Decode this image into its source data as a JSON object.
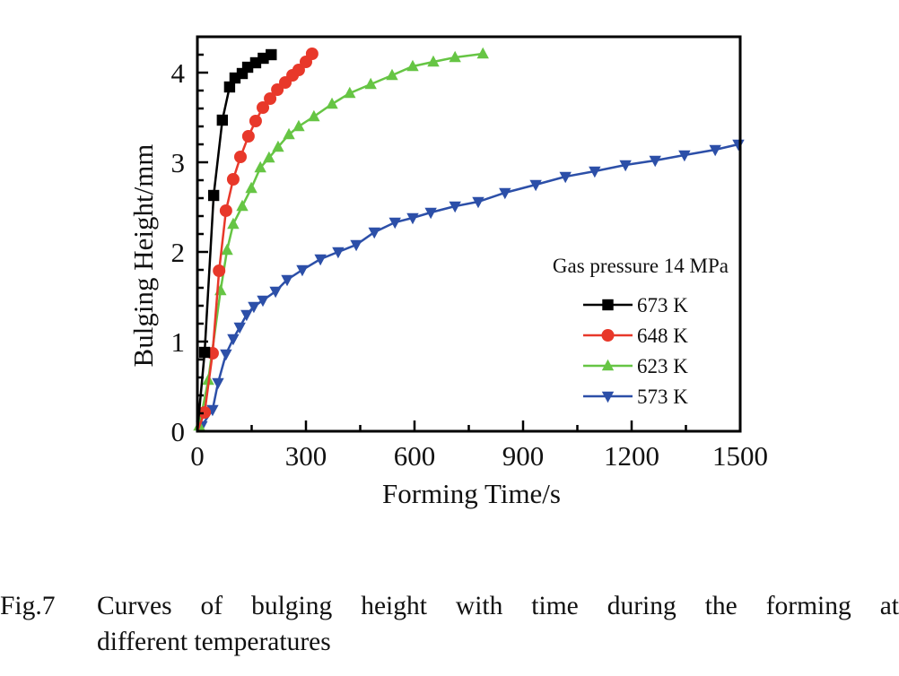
{
  "chart_data": {
    "type": "line",
    "title": "",
    "xlabel": "Forming Time/s",
    "ylabel": "Bulging Height/mm",
    "xlim": [
      0,
      1500
    ],
    "ylim": [
      0,
      4.4
    ],
    "xticks": [
      0,
      300,
      600,
      900,
      1200,
      1500
    ],
    "xtick_labels": [
      "0",
      "300",
      "600",
      "900",
      "1200",
      "1500"
    ],
    "yticks": [
      0,
      1,
      2,
      3,
      4
    ],
    "ytick_labels": [
      "0",
      "1",
      "2",
      "3",
      "4"
    ],
    "x_minor_step": 150,
    "y_minor_step": 0.2,
    "grid": false,
    "legend_title": "Gas pressure 14 MPa",
    "legend_position": "center-right",
    "series": [
      {
        "name": "673 K",
        "color": "#000000",
        "marker": "square",
        "x": [
          0,
          20,
          45,
          69,
          89,
          104,
          124,
          139,
          161,
          182,
          204
        ],
        "y": [
          0,
          0.88,
          2.63,
          3.47,
          3.84,
          3.94,
          3.99,
          4.06,
          4.11,
          4.16,
          4.2
        ]
      },
      {
        "name": "648 K",
        "color": "#e8382a",
        "marker": "circle",
        "x": [
          0,
          20,
          42,
          60,
          79,
          99,
          119,
          141,
          161,
          181,
          201,
          221,
          243,
          263,
          280,
          300,
          317
        ],
        "y": [
          0,
          0.21,
          0.87,
          1.79,
          2.46,
          2.81,
          3.06,
          3.29,
          3.46,
          3.61,
          3.71,
          3.81,
          3.89,
          3.97,
          4.03,
          4.12,
          4.21
        ]
      },
      {
        "name": "623 K",
        "color": "#66c544",
        "marker": "triangle-up",
        "x": [
          0,
          5,
          30,
          64,
          82,
          99,
          124,
          149,
          174,
          198,
          223,
          253,
          280,
          322,
          372,
          421,
          479,
          538,
          595,
          652,
          712,
          789
        ],
        "y": [
          0,
          0.06,
          0.57,
          1.57,
          2.02,
          2.31,
          2.51,
          2.71,
          2.94,
          3.05,
          3.17,
          3.31,
          3.4,
          3.51,
          3.65,
          3.77,
          3.87,
          3.97,
          4.07,
          4.12,
          4.17,
          4.21
        ]
      },
      {
        "name": "573 K",
        "color": "#2c4fa8",
        "marker": "triangle-down",
        "x": [
          0,
          12,
          42,
          57,
          79,
          99,
          117,
          136,
          156,
          181,
          216,
          248,
          290,
          340,
          389,
          439,
          489,
          546,
          595,
          645,
          712,
          776,
          850,
          935,
          1017,
          1098,
          1183,
          1265,
          1346,
          1431,
          1495
        ],
        "y": [
          0,
          0.06,
          0.24,
          0.54,
          0.86,
          1.03,
          1.16,
          1.3,
          1.39,
          1.46,
          1.56,
          1.69,
          1.8,
          1.92,
          2.0,
          2.08,
          2.22,
          2.33,
          2.38,
          2.44,
          2.51,
          2.56,
          2.66,
          2.75,
          2.84,
          2.9,
          2.97,
          3.02,
          3.08,
          3.14,
          3.2
        ]
      }
    ]
  },
  "caption": {
    "label": "Fig.7",
    "line1": "Curves of bulging height with time during the forming at",
    "line2": "different temperatures"
  }
}
